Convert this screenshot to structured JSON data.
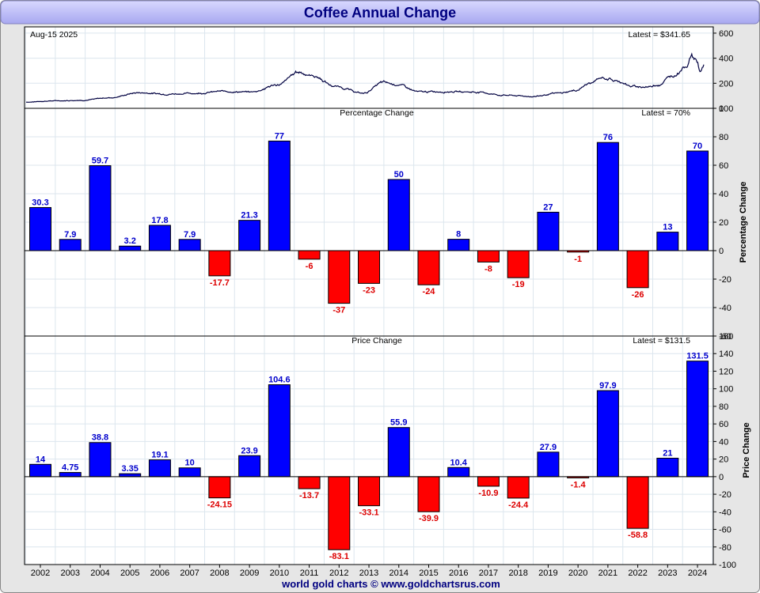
{
  "title": "Coffee Annual Change",
  "footer": "world gold charts © www.goldchartsrus.com",
  "colors": {
    "title_text": "#000080",
    "header_bg": "#c8c8f8",
    "frame_bg": "#e8e8e8",
    "positive": "#0000ff",
    "negative": "#ff0000",
    "positive_label": "#0000cc",
    "negative_label": "#dd0000",
    "price_line": "#000040",
    "grid": "#dce6ee"
  },
  "chart_data": [
    {
      "type": "line",
      "date_label": "Aug-15  2025",
      "latest_label": "Latest = $341.65",
      "ylim": [
        0,
        650
      ],
      "yticks": [
        "0",
        "200",
        "400",
        "600"
      ],
      "x_start": 2001.5,
      "x_end": 2025.62,
      "anchors": [
        [
          2001.5,
          50
        ],
        [
          2002.5,
          60
        ],
        [
          2003.5,
          65
        ],
        [
          2004.5,
          85
        ],
        [
          2005.5,
          125
        ],
        [
          2006.5,
          115
        ],
        [
          2007.5,
          120
        ],
        [
          2008.5,
          135
        ],
        [
          2009.5,
          130
        ],
        [
          2010.5,
          190
        ],
        [
          2011.2,
          290
        ],
        [
          2011.7,
          260
        ],
        [
          2012.5,
          175
        ],
        [
          2013.5,
          120
        ],
        [
          2014.2,
          205
        ],
        [
          2014.7,
          190
        ],
        [
          2015.5,
          130
        ],
        [
          2016.5,
          135
        ],
        [
          2017.5,
          130
        ],
        [
          2018.5,
          105
        ],
        [
          2019.5,
          95
        ],
        [
          2020.5,
          120
        ],
        [
          2021.0,
          140
        ],
        [
          2021.6,
          200
        ],
        [
          2022.0,
          245
        ],
        [
          2022.7,
          210
        ],
        [
          2023.0,
          175
        ],
        [
          2023.6,
          170
        ],
        [
          2024.0,
          190
        ],
        [
          2024.5,
          260
        ],
        [
          2025.0,
          340
        ],
        [
          2025.15,
          420
        ],
        [
          2025.35,
          390
        ],
        [
          2025.5,
          300
        ],
        [
          2025.62,
          341.65
        ]
      ]
    },
    {
      "type": "bar",
      "title": "Percentage Change",
      "latest_label": "Latest = 70%",
      "ylabel": "Percentage Change",
      "ylim": [
        -60,
        100
      ],
      "yticks": [
        -60,
        -40,
        -20,
        0,
        20,
        40,
        60,
        80,
        100
      ],
      "categories": [
        "2002",
        "2003",
        "2004",
        "2005",
        "2006",
        "2007",
        "2008",
        "2009",
        "2010",
        "2011",
        "2012",
        "2013",
        "2014",
        "2015",
        "2016",
        "2017",
        "2018",
        "2019",
        "2020",
        "2021",
        "2022",
        "2023",
        "2024"
      ],
      "values": [
        30.3,
        7.9,
        59.7,
        3.2,
        17.8,
        7.9,
        -17.7,
        21.3,
        77,
        -6,
        -37,
        -23,
        50,
        -24,
        8,
        -8,
        -19,
        27,
        -1,
        76,
        -26,
        13,
        70
      ],
      "labels": [
        "30.3",
        "7.9",
        "59.7",
        "3.2",
        "17.8",
        "7.9",
        "-17.7",
        "21.3",
        "77",
        "-6",
        "-37",
        "-23",
        "50",
        "-24",
        "8",
        "-8",
        "-19",
        "27",
        "-1",
        "76",
        "-26",
        "13",
        "70"
      ]
    },
    {
      "type": "bar",
      "title": "Price Change",
      "latest_label": "Latest = $131.5",
      "ylabel": "Price Change",
      "ylim": [
        -100,
        160
      ],
      "yticks": [
        -100,
        -80,
        -60,
        -40,
        -20,
        0,
        20,
        40,
        60,
        80,
        100,
        120,
        140,
        160
      ],
      "categories": [
        "2002",
        "2003",
        "2004",
        "2005",
        "2006",
        "2007",
        "2008",
        "2009",
        "2010",
        "2011",
        "2012",
        "2013",
        "2014",
        "2015",
        "2016",
        "2017",
        "2018",
        "2019",
        "2020",
        "2021",
        "2022",
        "2023",
        "2024"
      ],
      "values": [
        14,
        4.75,
        38.8,
        3.35,
        19.1,
        10,
        -24.15,
        23.9,
        104.6,
        -13.7,
        -83.1,
        -33.1,
        55.9,
        -39.9,
        10.4,
        -10.9,
        -24.4,
        27.9,
        -1.4,
        97.9,
        -58.8,
        21,
        131.5
      ],
      "labels": [
        "14",
        "4.75",
        "38.8",
        "3.35",
        "19.1",
        "10",
        "-24.15",
        "23.9",
        "104.6",
        "-13.7",
        "-83.1",
        "-33.1",
        "55.9",
        "-39.9",
        "10.4",
        "-10.9",
        "-24.4",
        "27.9",
        "-1.4",
        "97.9",
        "-58.8",
        "21",
        "131.5"
      ]
    }
  ]
}
